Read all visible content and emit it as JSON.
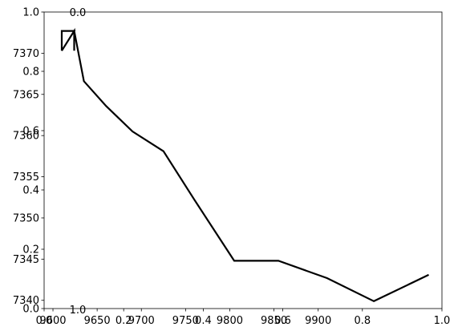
{
  "chart_data": {
    "type": "line",
    "title": "",
    "xlabel": "",
    "ylabel": "",
    "xlim": [
      9590,
      10040
    ],
    "ylim": [
      7339,
      7375
    ],
    "x_ticks": [
      {
        "v": 9600,
        "label": "9600"
      },
      {
        "v": 9650,
        "label": "9650"
      },
      {
        "v": 9700,
        "label": "9700"
      },
      {
        "v": 9750,
        "label": "9750"
      },
      {
        "v": 9800,
        "label": "9800"
      },
      {
        "v": 9850,
        "label": "9850"
      },
      {
        "v": 9900,
        "label": "9900"
      }
    ],
    "y_ticks": [
      {
        "v": 7340,
        "label": "7340"
      },
      {
        "v": 7345,
        "label": "7345"
      },
      {
        "v": 7350,
        "label": "7350"
      },
      {
        "v": 7355,
        "label": "7355"
      },
      {
        "v": 7360,
        "label": "7360"
      },
      {
        "v": 7365,
        "label": "7365"
      },
      {
        "v": 7370,
        "label": "7370"
      }
    ],
    "overlay_axes": {
      "left_ticks": [
        "0.0",
        "0.2",
        "0.4",
        "0.6",
        "0.8",
        "1.0"
      ],
      "bottom_ticks": [
        "0.0",
        "0.2",
        "0.4",
        "0.6",
        "0.8",
        "1.0"
      ],
      "top_label": "0.0",
      "bottom_label": "1.0"
    },
    "series": [
      {
        "color": "#000000",
        "points": [
          {
            "x": 9610,
            "y": 7370.3
          },
          {
            "x": 9610,
            "y": 7372.7
          },
          {
            "x": 9624,
            "y": 7372.7
          },
          {
            "x": 9610,
            "y": 7370.3
          },
          {
            "x": 9624,
            "y": 7372.7
          },
          {
            "x": 9624,
            "y": 7370.3
          },
          {
            "x": 9624,
            "y": 7372.7
          },
          {
            "x": 9635,
            "y": 7366.6
          },
          {
            "x": 9660,
            "y": 7363.6
          },
          {
            "x": 9690,
            "y": 7360.5
          },
          {
            "x": 9725,
            "y": 7358.1
          },
          {
            "x": 9760,
            "y": 7352.2
          },
          {
            "x": 9805,
            "y": 7344.8
          },
          {
            "x": 9855,
            "y": 7344.8
          },
          {
            "x": 9910,
            "y": 7342.7
          },
          {
            "x": 9963,
            "y": 7339.9
          },
          {
            "x": 10025,
            "y": 7343.1
          }
        ]
      }
    ]
  }
}
